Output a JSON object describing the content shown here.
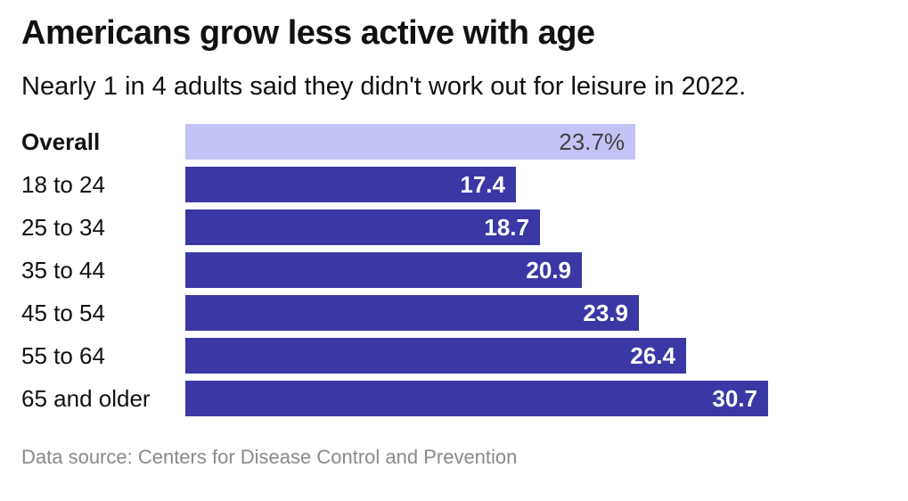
{
  "header": {
    "title": "Americans grow less active with age",
    "subtitle": "Nearly 1 in 4 adults said they didn't work out for leisure in 2022."
  },
  "chart_data": {
    "type": "bar",
    "orientation": "horizontal",
    "title": "Americans grow less active with age",
    "subtitle": "Nearly 1 in 4 adults said they didn't work out for leisure in 2022.",
    "categories": [
      "Overall",
      "18 to 24",
      "25 to 34",
      "35 to 44",
      "45 to 54",
      "55 to 64",
      "65 and older"
    ],
    "values": [
      23.7,
      17.4,
      18.7,
      20.9,
      23.9,
      26.4,
      30.7
    ],
    "value_labels": [
      "23.7%",
      "17.4",
      "18.7",
      "20.9",
      "23.9",
      "26.4",
      "30.7"
    ],
    "unit": "percent",
    "highlight_index": 0,
    "xlim": [
      0,
      30.7
    ],
    "grid": false,
    "legend": false,
    "value_label_position": "inside-end"
  },
  "footer": {
    "source": "Data source: Centers for Disease Control and Prevention"
  },
  "colors": {
    "bar_primary": "#3b38a5",
    "bar_highlight": "#c4c3f6",
    "value_on_primary": "#ffffff",
    "value_on_highlight": "#414141",
    "title_text": "#111111",
    "source_text": "#8a8a8a",
    "background": "#ffffff"
  }
}
